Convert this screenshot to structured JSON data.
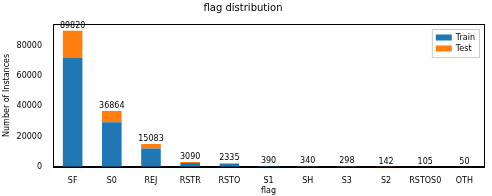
{
  "chart_data": {
    "type": "bar",
    "title": "flag distribution",
    "x_label": "flag",
    "y_label": "Number of Instances",
    "categories": [
      "SF",
      "S0",
      "REJ",
      "RSTR",
      "RSTO",
      "S1",
      "SH",
      "S3",
      "S2",
      "RSTOS0",
      "OTH"
    ],
    "series": [
      {
        "name": "Train",
        "color": "#1f77b4",
        "values": [
          71856,
          29491,
          12066,
          2472,
          1868,
          312,
          272,
          238,
          114,
          84,
          40
        ]
      },
      {
        "name": "Test",
        "color": "#ff7f0e",
        "values": [
          17964,
          7373,
          3017,
          618,
          467,
          78,
          68,
          60,
          28,
          21,
          10
        ]
      }
    ],
    "totals": [
      89820,
      36864,
      15083,
      3090,
      2335,
      390,
      340,
      298,
      142,
      105,
      50
    ],
    "stacked": true,
    "legend": "upper right",
    "grid": false,
    "ylim": [
      0,
      94311
    ],
    "yticks": [
      0,
      20000,
      40000,
      60000,
      80000
    ]
  }
}
